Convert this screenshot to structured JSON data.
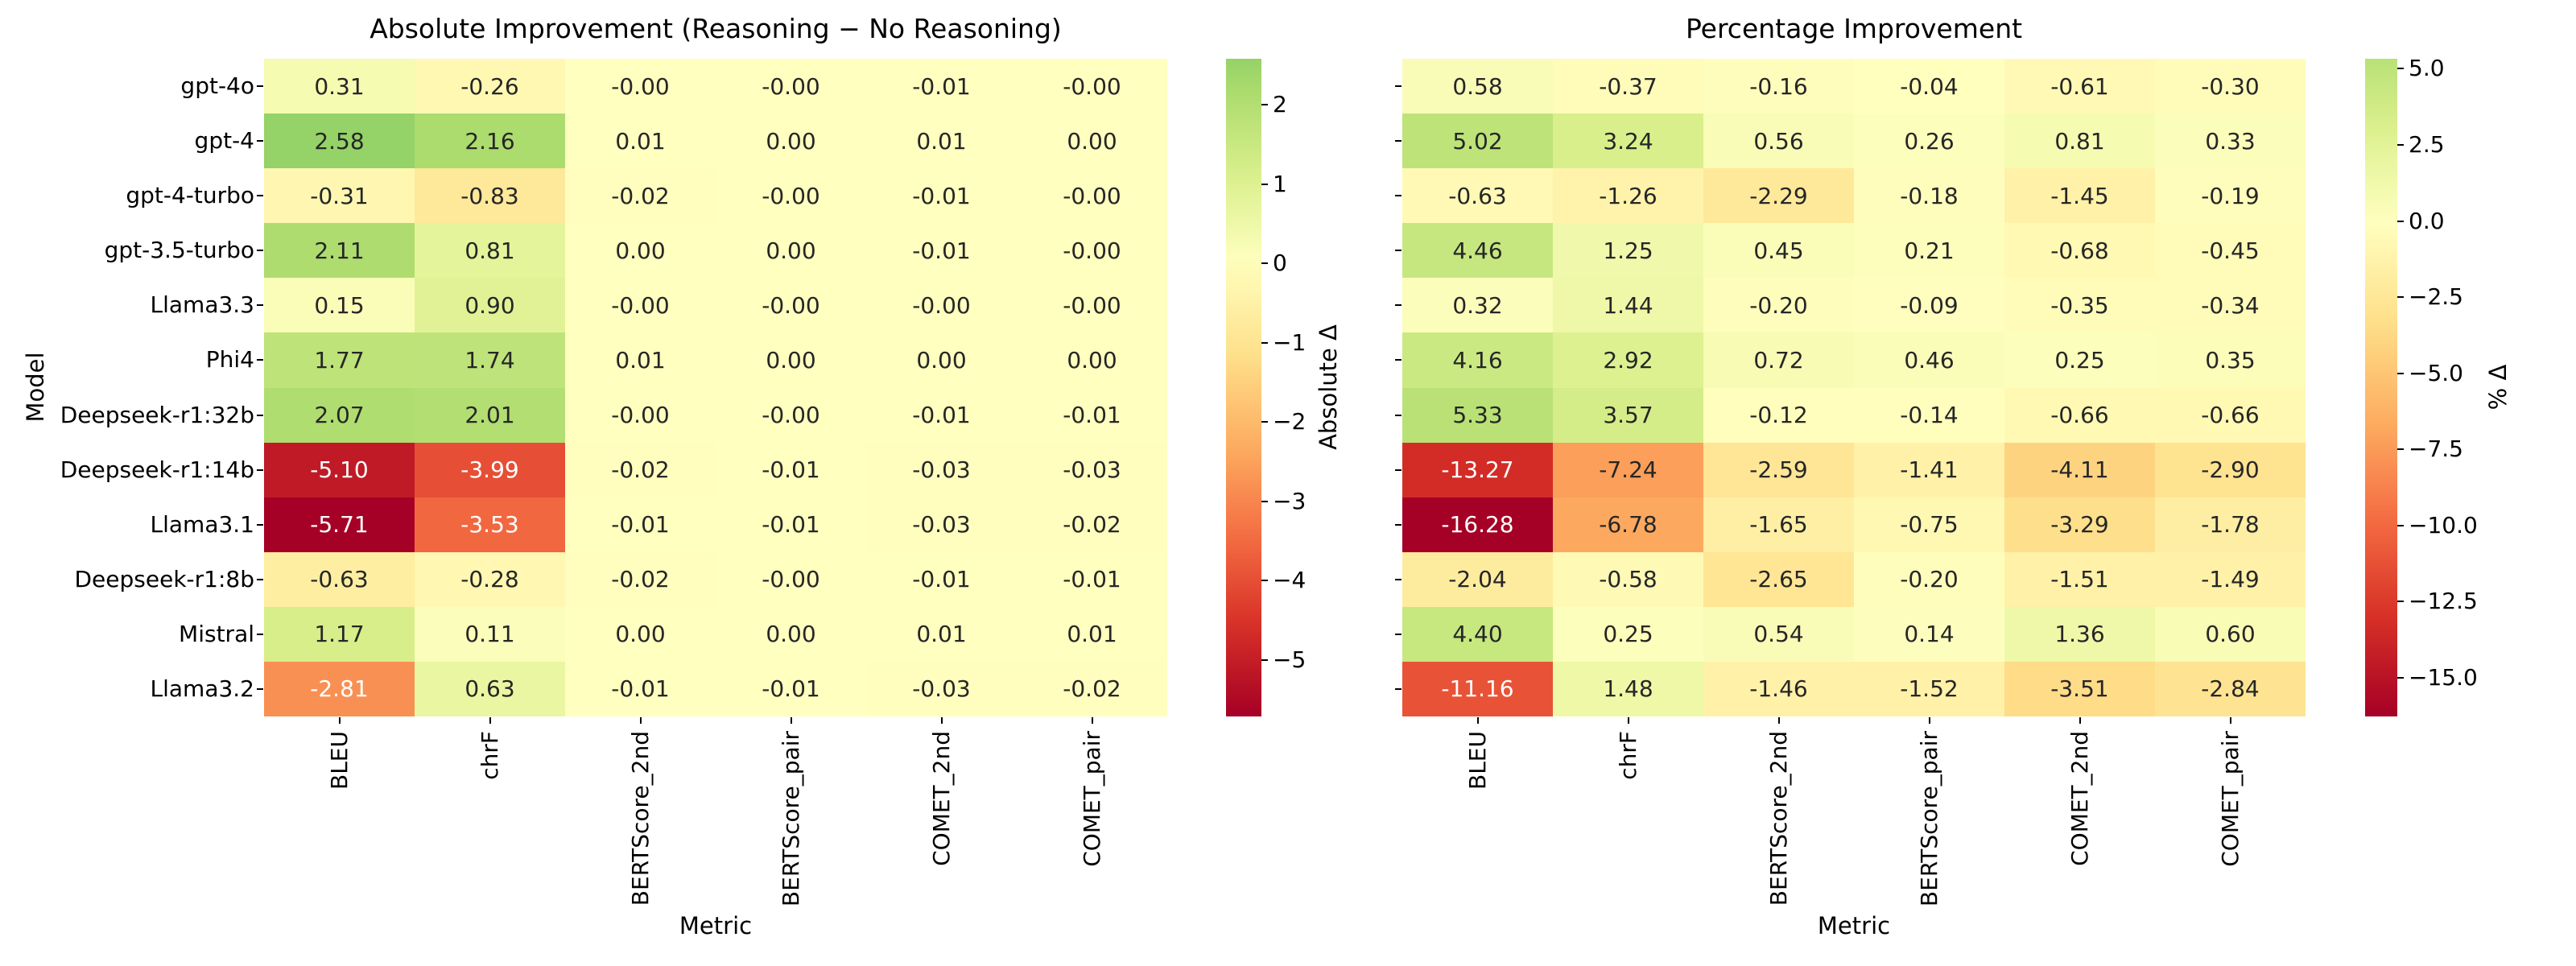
{
  "chart_data": [
    {
      "type": "heatmap",
      "title": "Absolute Improvement (Reasoning − No Reasoning)",
      "xlabel": "Metric",
      "ylabel": "Model",
      "colormap": "RdYlGn",
      "center": 0,
      "vmin": -5.71,
      "vmax": 2.58,
      "grid": false,
      "x_categories": [
        "BLEU",
        "chrF",
        "BERTScore_2nd",
        "BERTScore_pair",
        "COMET_2nd",
        "COMET_pair"
      ],
      "y_categories": [
        "gpt-4o",
        "gpt-4",
        "gpt-4-turbo",
        "gpt-3.5-turbo",
        "Llama3.3",
        "Phi4",
        "Deepseek-r1:32b",
        "Deepseek-r1:14b",
        "Llama3.1",
        "Deepseek-r1:8b",
        "Mistral",
        "Llama3.2"
      ],
      "values": [
        [
          "0.31",
          "-0.26",
          "-0.00",
          "-0.00",
          "-0.01",
          "-0.00"
        ],
        [
          "2.58",
          "2.16",
          "0.01",
          "0.00",
          "0.01",
          "0.00"
        ],
        [
          "-0.31",
          "-0.83",
          "-0.02",
          "-0.00",
          "-0.01",
          "-0.00"
        ],
        [
          "2.11",
          "0.81",
          "0.00",
          "0.00",
          "-0.01",
          "-0.00"
        ],
        [
          "0.15",
          "0.90",
          "-0.00",
          "-0.00",
          "-0.00",
          "-0.00"
        ],
        [
          "1.77",
          "1.74",
          "0.01",
          "0.00",
          "0.00",
          "0.00"
        ],
        [
          "2.07",
          "2.01",
          "-0.00",
          "-0.00",
          "-0.01",
          "-0.01"
        ],
        [
          "-5.10",
          "-3.99",
          "-0.02",
          "-0.01",
          "-0.03",
          "-0.03"
        ],
        [
          "-5.71",
          "-3.53",
          "-0.01",
          "-0.01",
          "-0.03",
          "-0.02"
        ],
        [
          "-0.63",
          "-0.28",
          "-0.02",
          "-0.00",
          "-0.01",
          "-0.01"
        ],
        [
          "1.17",
          "0.11",
          "0.00",
          "0.00",
          "0.01",
          "0.01"
        ],
        [
          "-2.81",
          "0.63",
          "-0.01",
          "-0.01",
          "-0.03",
          "-0.02"
        ]
      ],
      "show_y_tick_labels": true,
      "colorbar": {
        "label": "Absolute Δ",
        "tick_values": [
          2,
          1,
          0,
          -1,
          -2,
          -3,
          -4,
          -5
        ],
        "tick_labels": [
          "2",
          "1",
          "0",
          "−1",
          "−2",
          "−3",
          "−4",
          "−5"
        ]
      }
    },
    {
      "type": "heatmap",
      "title": "Percentage Improvement",
      "xlabel": "Metric",
      "ylabel": "",
      "colormap": "RdYlGn",
      "center": 0,
      "vmin": -16.28,
      "vmax": 5.33,
      "grid": false,
      "x_categories": [
        "BLEU",
        "chrF",
        "BERTScore_2nd",
        "BERTScore_pair",
        "COMET_2nd",
        "COMET_pair"
      ],
      "y_categories": [
        "gpt-4o",
        "gpt-4",
        "gpt-4-turbo",
        "gpt-3.5-turbo",
        "Llama3.3",
        "Phi4",
        "Deepseek-r1:32b",
        "Deepseek-r1:14b",
        "Llama3.1",
        "Deepseek-r1:8b",
        "Mistral",
        "Llama3.2"
      ],
      "values": [
        [
          "0.58",
          "-0.37",
          "-0.16",
          "-0.04",
          "-0.61",
          "-0.30"
        ],
        [
          "5.02",
          "3.24",
          "0.56",
          "0.26",
          "0.81",
          "0.33"
        ],
        [
          "-0.63",
          "-1.26",
          "-2.29",
          "-0.18",
          "-1.45",
          "-0.19"
        ],
        [
          "4.46",
          "1.25",
          "0.45",
          "0.21",
          "-0.68",
          "-0.45"
        ],
        [
          "0.32",
          "1.44",
          "-0.20",
          "-0.09",
          "-0.35",
          "-0.34"
        ],
        [
          "4.16",
          "2.92",
          "0.72",
          "0.46",
          "0.25",
          "0.35"
        ],
        [
          "5.33",
          "3.57",
          "-0.12",
          "-0.14",
          "-0.66",
          "-0.66"
        ],
        [
          "-13.27",
          "-7.24",
          "-2.59",
          "-1.41",
          "-4.11",
          "-2.90"
        ],
        [
          "-16.28",
          "-6.78",
          "-1.65",
          "-0.75",
          "-3.29",
          "-1.78"
        ],
        [
          "-2.04",
          "-0.58",
          "-2.65",
          "-0.20",
          "-1.51",
          "-1.49"
        ],
        [
          "4.40",
          "0.25",
          "0.54",
          "0.14",
          "1.36",
          "0.60"
        ],
        [
          "-11.16",
          "1.48",
          "-1.46",
          "-1.52",
          "-3.51",
          "-2.84"
        ]
      ],
      "show_y_tick_labels": false,
      "colorbar": {
        "label": "% Δ",
        "tick_values": [
          5.0,
          2.5,
          0.0,
          -2.5,
          -5.0,
          -7.5,
          -10.0,
          -12.5,
          -15.0
        ],
        "tick_labels": [
          "5.0",
          "2.5",
          "0.0",
          "−2.5",
          "−5.0",
          "−7.5",
          "−10.0",
          "−12.5",
          "−15.0"
        ]
      }
    }
  ]
}
